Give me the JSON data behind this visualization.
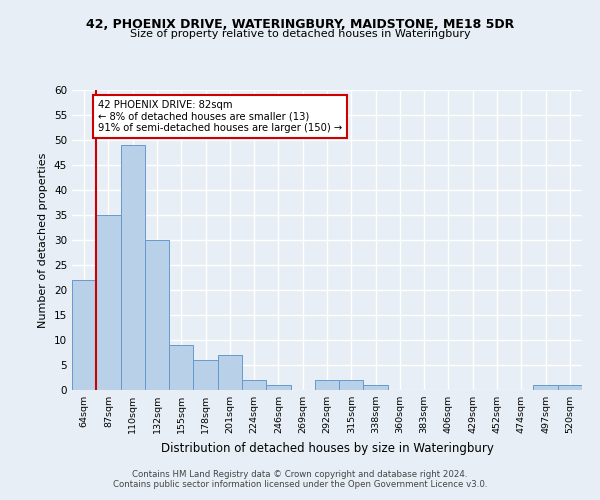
{
  "title1": "42, PHOENIX DRIVE, WATERINGBURY, MAIDSTONE, ME18 5DR",
  "title2": "Size of property relative to detached houses in Wateringbury",
  "xlabel": "Distribution of detached houses by size in Wateringbury",
  "ylabel": "Number of detached properties",
  "categories": [
    "64sqm",
    "87sqm",
    "110sqm",
    "132sqm",
    "155sqm",
    "178sqm",
    "201sqm",
    "224sqm",
    "246sqm",
    "269sqm",
    "292sqm",
    "315sqm",
    "338sqm",
    "360sqm",
    "383sqm",
    "406sqm",
    "429sqm",
    "452sqm",
    "474sqm",
    "497sqm",
    "520sqm"
  ],
  "values": [
    22,
    35,
    49,
    30,
    9,
    6,
    7,
    2,
    1,
    0,
    2,
    2,
    1,
    0,
    0,
    0,
    0,
    0,
    0,
    1,
    1
  ],
  "bar_color": "#b8d0e8",
  "bar_edge_color": "#6699cc",
  "annotation_text": "42 PHOENIX DRIVE: 82sqm\n← 8% of detached houses are smaller (13)\n91% of semi-detached houses are larger (150) →",
  "annotation_box_color": "#ffffff",
  "annotation_border_color": "#cc0000",
  "ylim": [
    0,
    60
  ],
  "yticks": [
    0,
    5,
    10,
    15,
    20,
    25,
    30,
    35,
    40,
    45,
    50,
    55,
    60
  ],
  "background_color": "#e8eef5",
  "grid_color": "#ffffff",
  "footer1": "Contains HM Land Registry data © Crown copyright and database right 2024.",
  "footer2": "Contains public sector information licensed under the Open Government Licence v3.0.",
  "vline_color": "#cc0000",
  "vline_x": 0.5
}
